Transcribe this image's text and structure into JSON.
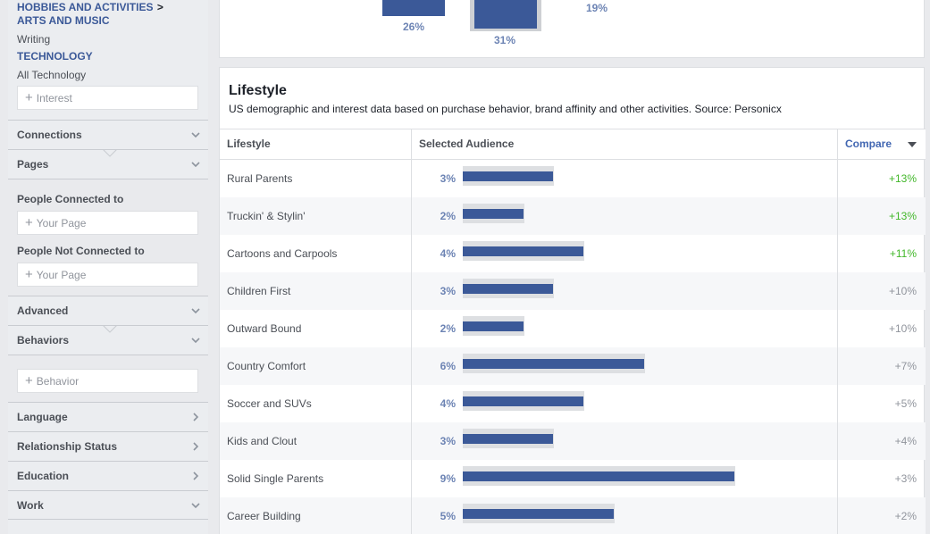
{
  "sidebar": {
    "breadcrumb_part1": "HOBBIES AND ACTIVITIES",
    "breadcrumb_sep": ">",
    "breadcrumb_part2": "ARTS AND MUSIC",
    "writing": "Writing",
    "technology": "TECHNOLOGY",
    "all_technology": "All Technology",
    "interest_placeholder": "Interest",
    "connections": "Connections",
    "pages": "Pages",
    "people_connected_to": "People Connected to",
    "your_page_1": "Your Page",
    "people_not_connected_to": "People Not Connected to",
    "your_page_2": "Your Page",
    "advanced": "Advanced",
    "behaviors": "Behaviors",
    "behavior_placeholder": "Behavior",
    "language": "Language",
    "relationship_status": "Relationship Status",
    "education": "Education",
    "work": "Work"
  },
  "top_card": {
    "bars": [
      {
        "label": "26%",
        "value": 26
      },
      {
        "label": "31%",
        "value": 31
      },
      {
        "label": "19%",
        "value": 19
      }
    ]
  },
  "lifestyle": {
    "title": "Lifestyle",
    "subtitle": "US demographic and interest data based on purchase behavior, brand affinity and other activities. Source: Personicx",
    "col_lifestyle": "Lifestyle",
    "col_selected": "Selected Audience",
    "col_compare": "Compare",
    "rows": [
      {
        "name": "Rural Parents",
        "pct": "3%",
        "value": 3,
        "compare": "+13%",
        "highlight": true
      },
      {
        "name": "Truckin' & Stylin'",
        "pct": "2%",
        "value": 2,
        "compare": "+13%",
        "highlight": true
      },
      {
        "name": "Cartoons and Carpools",
        "pct": "4%",
        "value": 4,
        "compare": "+11%",
        "highlight": true
      },
      {
        "name": "Children First",
        "pct": "3%",
        "value": 3,
        "compare": "+10%",
        "highlight": false
      },
      {
        "name": "Outward Bound",
        "pct": "2%",
        "value": 2,
        "compare": "+10%",
        "highlight": false
      },
      {
        "name": "Country Comfort",
        "pct": "6%",
        "value": 6,
        "compare": "+7%",
        "highlight": false
      },
      {
        "name": "Soccer and SUVs",
        "pct": "4%",
        "value": 4,
        "compare": "+5%",
        "highlight": false
      },
      {
        "name": "Kids and Clout",
        "pct": "3%",
        "value": 3,
        "compare": "+4%",
        "highlight": false
      },
      {
        "name": "Solid Single Parents",
        "pct": "9%",
        "value": 9,
        "compare": "+3%",
        "highlight": false
      },
      {
        "name": "Career Building",
        "pct": "5%",
        "value": 5,
        "compare": "+2%",
        "highlight": false
      }
    ]
  },
  "colors": {
    "bar": "#3b5998",
    "link": "#4267b2",
    "positive": "#42b72a"
  }
}
